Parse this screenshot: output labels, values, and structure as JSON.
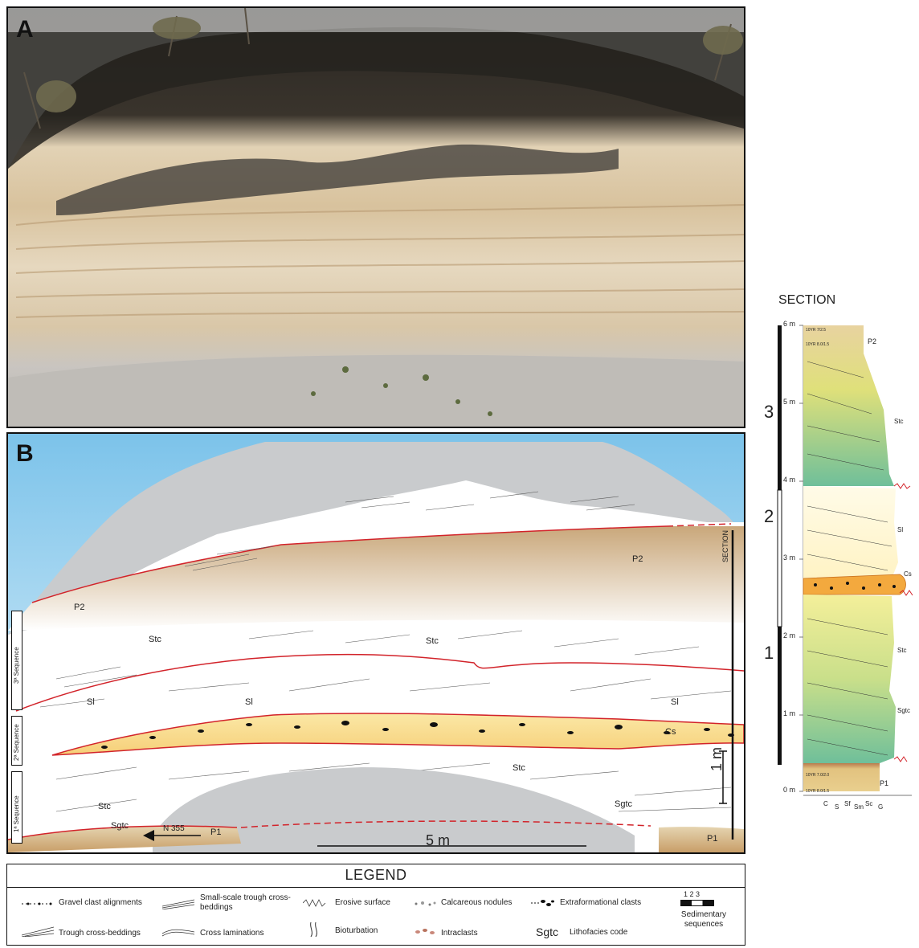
{
  "panelA": {
    "letter": "A"
  },
  "panelB": {
    "letter": "B",
    "labels": {
      "p2_right": "P2",
      "p2_left": "P2",
      "stc_1": "Stc",
      "stc_2": "Stc",
      "stc_3": "Stc",
      "stc_4": "Stc",
      "sl_1": "Sl",
      "sl_2": "Sl",
      "sl_3": "Sl",
      "cs": "Cs",
      "sgtc_1": "Sgtc",
      "sgtc_2": "Sgtc",
      "p1_left": "P1",
      "p1_right": "P1",
      "north": "N 355",
      "scale_h": "5 m",
      "scale_v": "1 m",
      "section": "SECTION"
    },
    "sequences": [
      "3ª Sequence",
      "2ª Sequence",
      "1ª Sequence"
    ]
  },
  "section": {
    "title": "SECTION",
    "depth_ticks": [
      "6 m",
      "5 m",
      "4 m",
      "3 m",
      "2 m",
      "1 m",
      "0 m"
    ],
    "sequence_numbers": [
      "3",
      "2",
      "1"
    ],
    "facies": {
      "p2": "P2",
      "stc_top": "Stc",
      "sl": "Sl",
      "cs": "Cs",
      "stc_low": "Stc",
      "sgtc": "Sgtc",
      "p1": "P1"
    },
    "grain_scale": [
      "C",
      "S",
      "Sf",
      "Sm",
      "Sc",
      "G"
    ],
    "munsell": [
      "10YR 7/2.5",
      "10YR 8.0/1.5",
      "10YR 7.0/2.0",
      "10YR 8.0/1.5"
    ]
  },
  "legend": {
    "title": "LEGEND",
    "items": {
      "gravel": "Gravel clast alignments",
      "small_scale": "Small-scale trough cross-beddings",
      "erosive": "Erosive surface",
      "calcareous": "Calcareous nodules",
      "extraformational": "Extraformational clasts",
      "trough": "Trough cross-beddings",
      "cross_lam": "Cross laminations",
      "bioturbation": "Bioturbation",
      "intraclasts": "Intraclasts",
      "lithofacies_code": "Sgtc",
      "lithofacies": "Lithofacies code",
      "sequences": "Sedimentary sequences",
      "seq_numbers": "1 2 3"
    }
  }
}
